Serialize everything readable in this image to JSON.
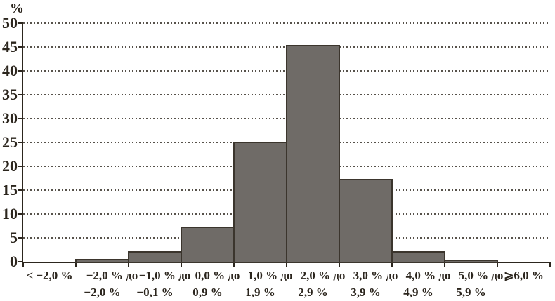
{
  "page": {
    "background": "#ffffff"
  },
  "chart_data": {
    "type": "bar",
    "title": "",
    "ylabel": "%",
    "xlabel": "",
    "ylim": [
      0,
      50
    ],
    "yticks": [
      0,
      5,
      10,
      15,
      20,
      25,
      30,
      35,
      40,
      45,
      50
    ],
    "grid": "horizontal-dotted",
    "legend": "none",
    "categories": [
      "< −2,0 %",
      "−2,0 % до −2,0 %",
      "−1,0 % до −0,1 %",
      "0,0 % до 0,9 %",
      "1,0 % до 1,9 %",
      "2,0 % до 2,9 %",
      "3,0 % до 3,9 %",
      "4,0 % до 4,9 %",
      "5,0 % до 5,9 %",
      "⩾6,0 %"
    ],
    "category_label_lines": [
      [
        "< −2,0 %",
        ""
      ],
      [
        "−2,0 % до",
        "−2,0 %"
      ],
      [
        "−1,0 % до",
        "−0,1 %"
      ],
      [
        "0,0 % до",
        "0,9 %"
      ],
      [
        "1,0 % до",
        "1,9 %"
      ],
      [
        "2,0 % до",
        "2,9 %"
      ],
      [
        "3,0 % до",
        "3,9 %"
      ],
      [
        "4,0 % до",
        "4,9 %"
      ],
      [
        "5,0 % до",
        "5,9 %"
      ],
      [
        "⩾6,0 %",
        ""
      ]
    ],
    "values": [
      0,
      0.6,
      2.2,
      7.3,
      25.1,
      45.4,
      17.4,
      2.2,
      0.5,
      0
    ],
    "colors": {
      "bar_fill": "#6f6b67",
      "bar_border": "#3b352d",
      "axis": "#2c261e",
      "text": "#2b251d",
      "grid": "#57524b",
      "background": "#ffffff"
    }
  }
}
